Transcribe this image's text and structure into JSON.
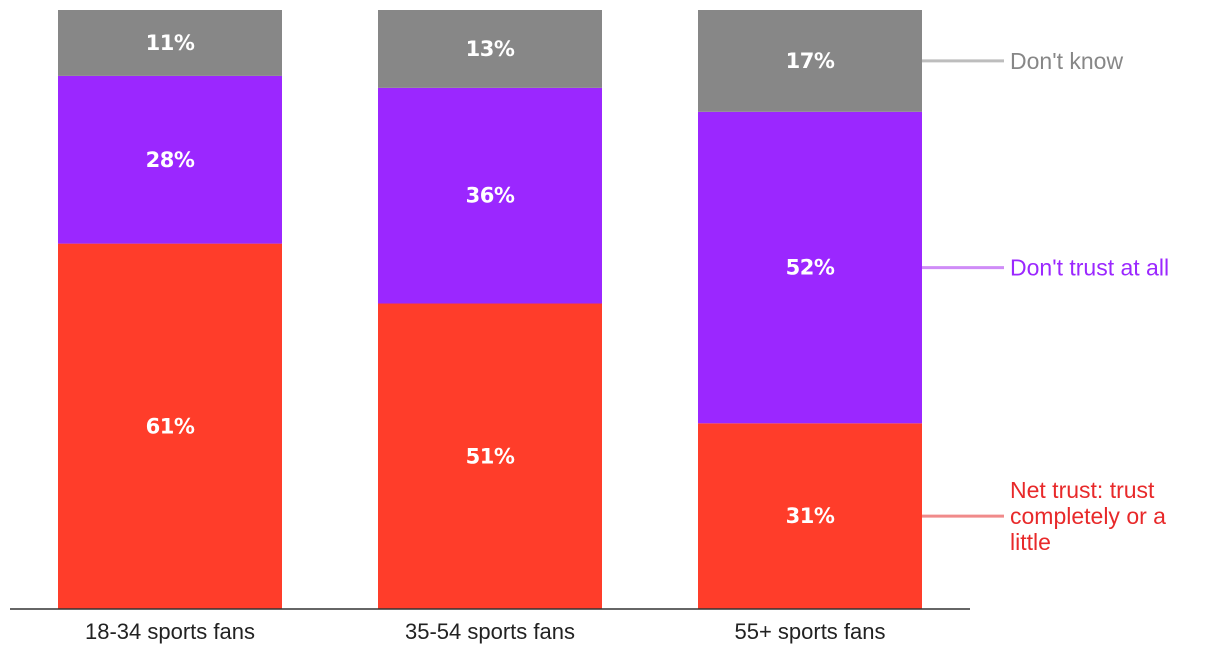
{
  "chart_data": {
    "type": "bar",
    "stacked": true,
    "orientation": "vertical",
    "title": "",
    "xlabel": "",
    "ylabel": "",
    "ylim": [
      0,
      100
    ],
    "grid": false,
    "legend_position": "right",
    "categories": [
      "18-34 sports fans",
      "35-54 sports fans",
      "55+ sports fans"
    ],
    "series": [
      {
        "name": "Net trust: trust completely or a little",
        "legend_lines": [
          "Net trust: trust",
          "completely or a",
          "little"
        ],
        "color": "#ff3d2a",
        "legend_color": "#e8292a",
        "values": [
          61,
          51,
          31
        ],
        "labels": [
          "61%",
          "51%",
          "31%"
        ]
      },
      {
        "name": "Don't trust at all",
        "legend_lines": [
          "Don't trust at all"
        ],
        "color": "#9b27ff",
        "legend_color": "#9b27ff",
        "values": [
          28,
          36,
          52
        ],
        "labels": [
          "28%",
          "36%",
          "52%"
        ]
      },
      {
        "name": "Don't know",
        "legend_lines": [
          "Don't know"
        ],
        "color": "#878787",
        "legend_color": "#878787",
        "values": [
          11,
          13,
          17
        ],
        "labels": [
          "11%",
          "13%",
          "17%"
        ]
      }
    ]
  }
}
